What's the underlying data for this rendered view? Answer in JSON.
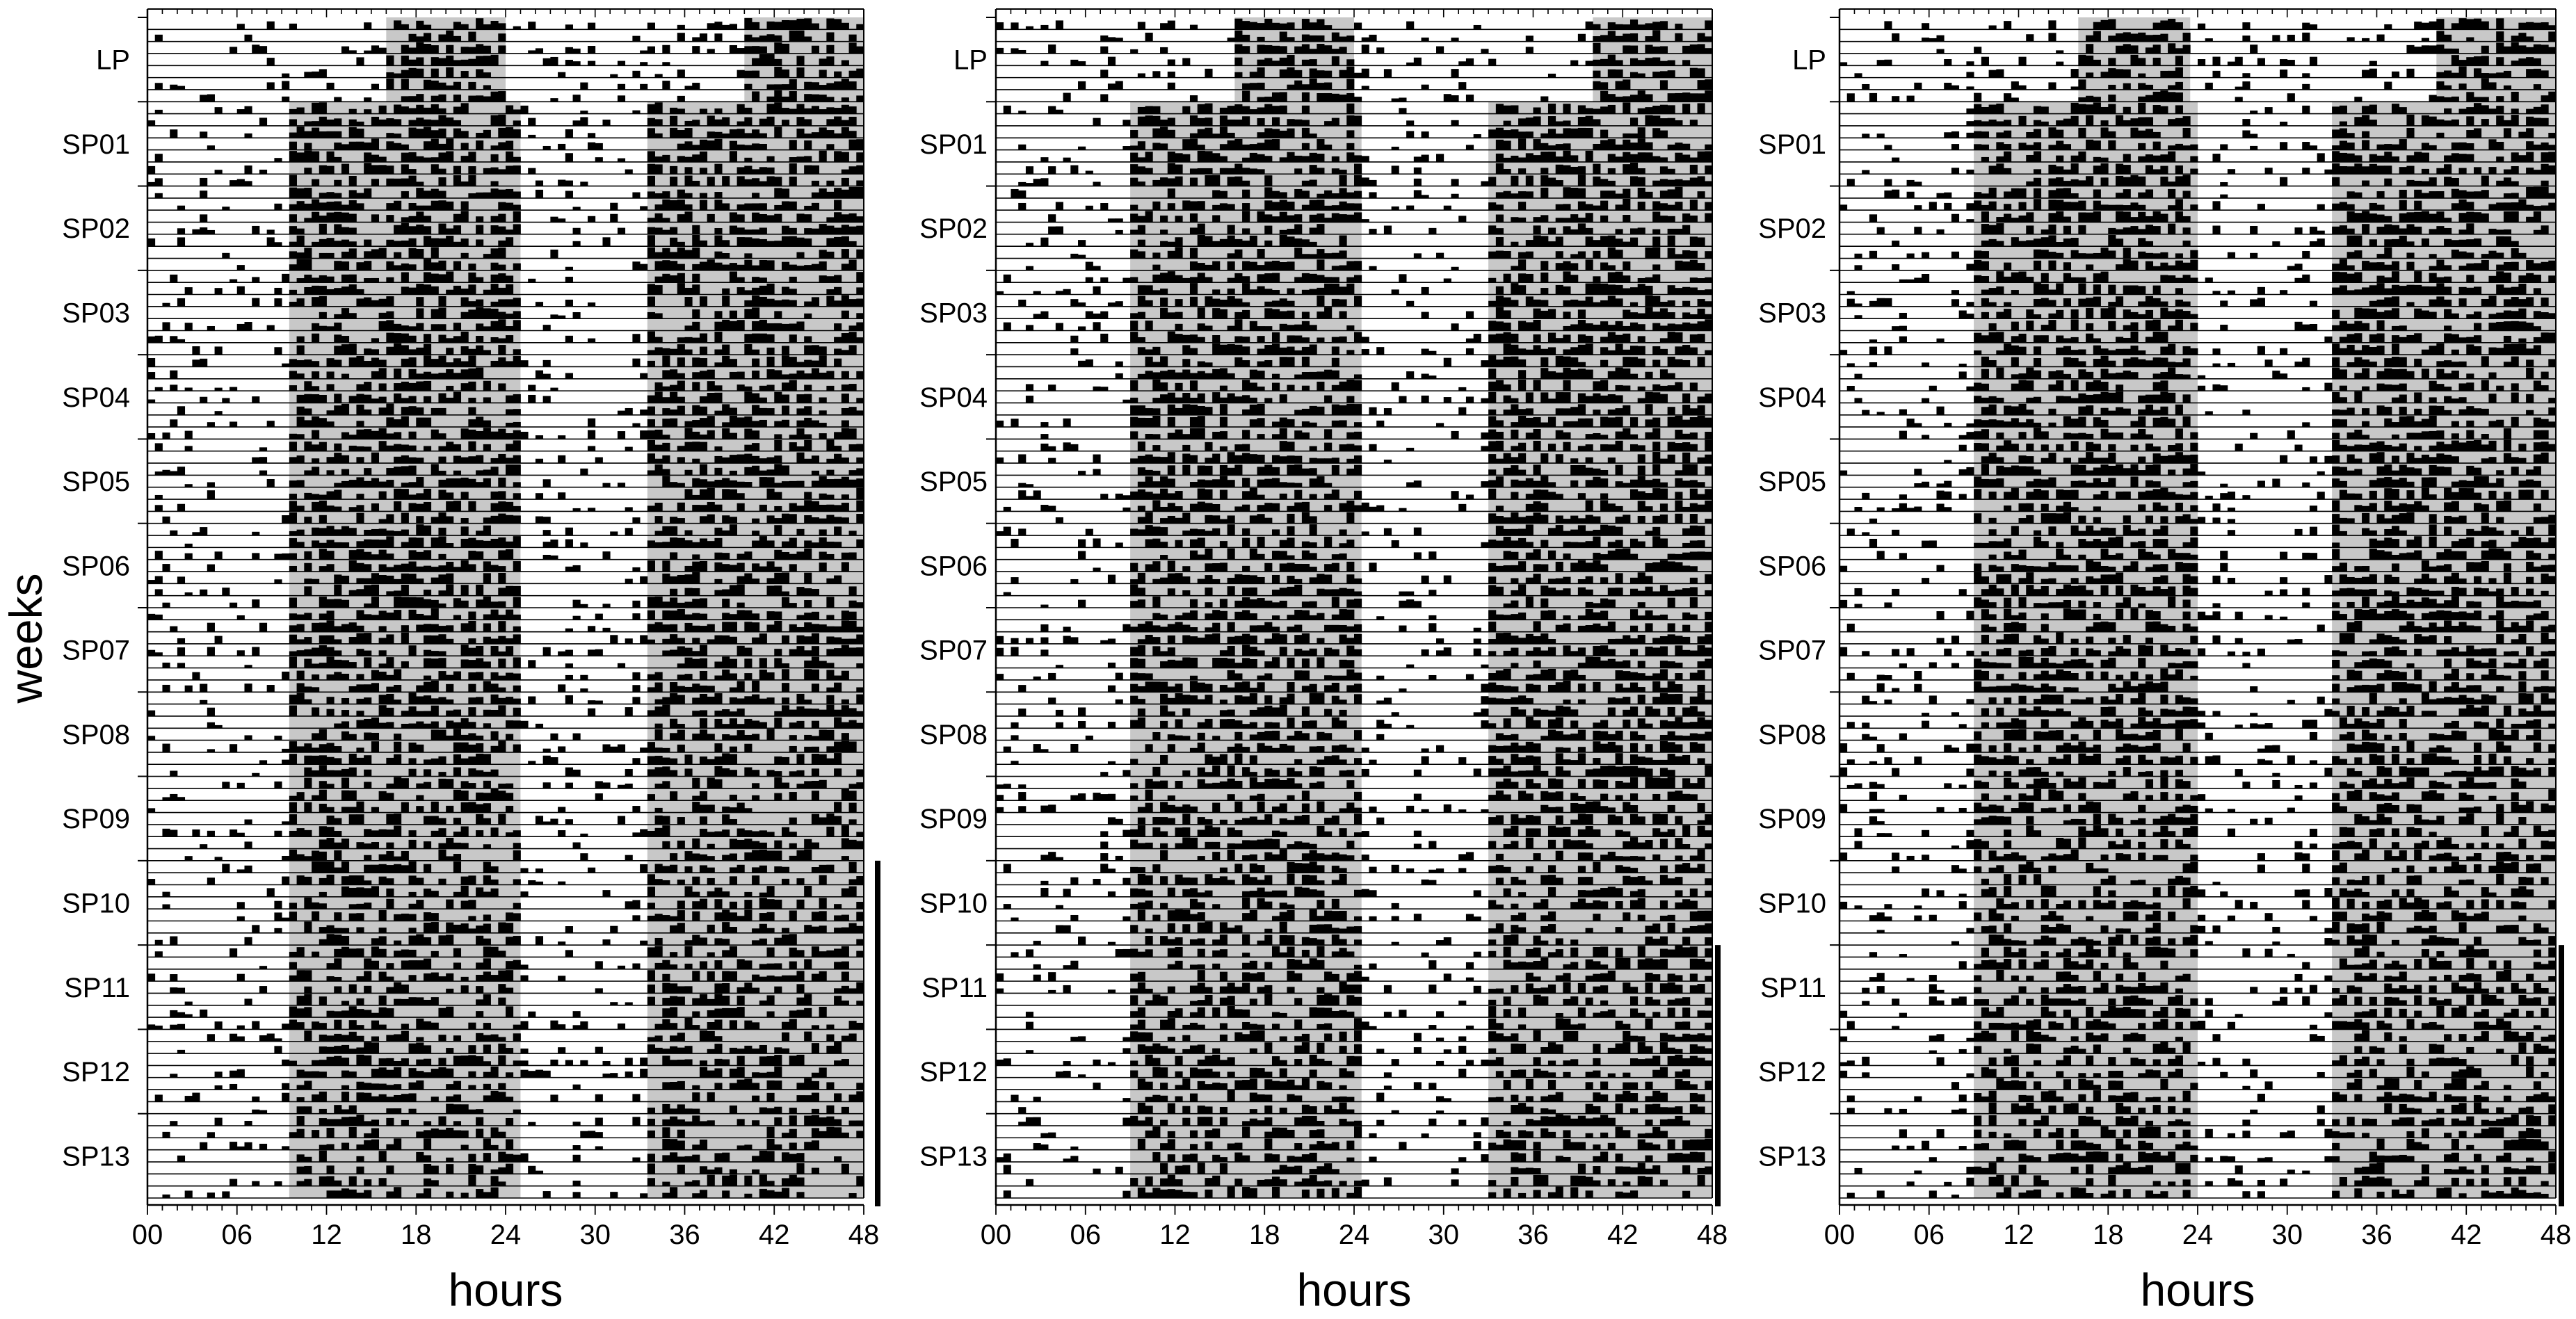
{
  "figure": {
    "ylabel": "weeks",
    "xlabel": "hours"
  },
  "chart_data": [
    {
      "type": "heatmap",
      "subtype": "double-plotted actogram",
      "panel": "left",
      "xlabel": "hours",
      "ylabel": "weeks",
      "x_ticks": [
        "00",
        "06",
        "12",
        "18",
        "24",
        "30",
        "36",
        "42",
        "48"
      ],
      "xlim": [
        0,
        48
      ],
      "y_groups": [
        "LP",
        "SP01",
        "SP02",
        "SP03",
        "SP04",
        "SP05",
        "SP06",
        "SP07",
        "SP08",
        "SP09",
        "SP10",
        "SP11",
        "SP12",
        "SP13"
      ],
      "days_per_group": 7,
      "light_condition_shading": [
        {
          "group": "LP",
          "dark_hours": [
            [
              16.0,
              24.0
            ],
            [
              40.0,
              48.0
            ]
          ]
        },
        {
          "group": "SP01-SP13",
          "dark_hours": [
            [
              9.5,
              25.0
            ],
            [
              33.5,
              48.0
            ]
          ]
        }
      ],
      "activity_onset_hours": {
        "LP": 16,
        "SP": 9.5
      },
      "marker_bar_groups": [
        "SP10",
        "SP11",
        "SP12",
        "SP13"
      ],
      "grid": false,
      "legend": "none"
    },
    {
      "type": "heatmap",
      "subtype": "double-plotted actogram",
      "panel": "middle",
      "xlabel": "hours",
      "ylabel": "weeks",
      "x_ticks": [
        "00",
        "06",
        "12",
        "18",
        "24",
        "30",
        "36",
        "42",
        "48"
      ],
      "xlim": [
        0,
        48
      ],
      "y_groups": [
        "LP",
        "SP01",
        "SP02",
        "SP03",
        "SP04",
        "SP05",
        "SP06",
        "SP07",
        "SP08",
        "SP09",
        "SP10",
        "SP11",
        "SP12",
        "SP13"
      ],
      "days_per_group": 7,
      "light_condition_shading": [
        {
          "group": "LP",
          "dark_hours": [
            [
              16.0,
              24.0
            ],
            [
              40.0,
              48.0
            ]
          ]
        },
        {
          "group": "SP01-SP13",
          "dark_hours": [
            [
              9.0,
              24.5
            ],
            [
              33.0,
              48.0
            ]
          ]
        }
      ],
      "activity_onset_hours": {
        "LP": 16,
        "SP": 9
      },
      "marker_bar_groups": [
        "SP11",
        "SP12",
        "SP13"
      ],
      "grid": false,
      "legend": "none"
    },
    {
      "type": "heatmap",
      "subtype": "double-plotted actogram",
      "panel": "right",
      "xlabel": "hours",
      "ylabel": "weeks",
      "x_ticks": [
        "00",
        "06",
        "12",
        "18",
        "24",
        "30",
        "36",
        "42",
        "48"
      ],
      "xlim": [
        0,
        48
      ],
      "y_groups": [
        "LP",
        "SP01",
        "SP02",
        "SP03",
        "SP04",
        "SP05",
        "SP06",
        "SP07",
        "SP08",
        "SP09",
        "SP10",
        "SP11",
        "SP12",
        "SP13"
      ],
      "days_per_group": 7,
      "light_condition_shading": [
        {
          "group": "LP",
          "dark_hours": [
            [
              16.0,
              23.5
            ],
            [
              40.0,
              48.0
            ]
          ]
        },
        {
          "group": "SP01-SP13",
          "dark_hours": [
            [
              9.0,
              24.0
            ],
            [
              33.0,
              48.0
            ]
          ]
        }
      ],
      "activity_onset_hours": {
        "LP": 16,
        "SP": 9
      },
      "marker_bar_groups": [
        "SP11",
        "SP12",
        "SP13"
      ],
      "grid": false,
      "legend": "none"
    }
  ]
}
